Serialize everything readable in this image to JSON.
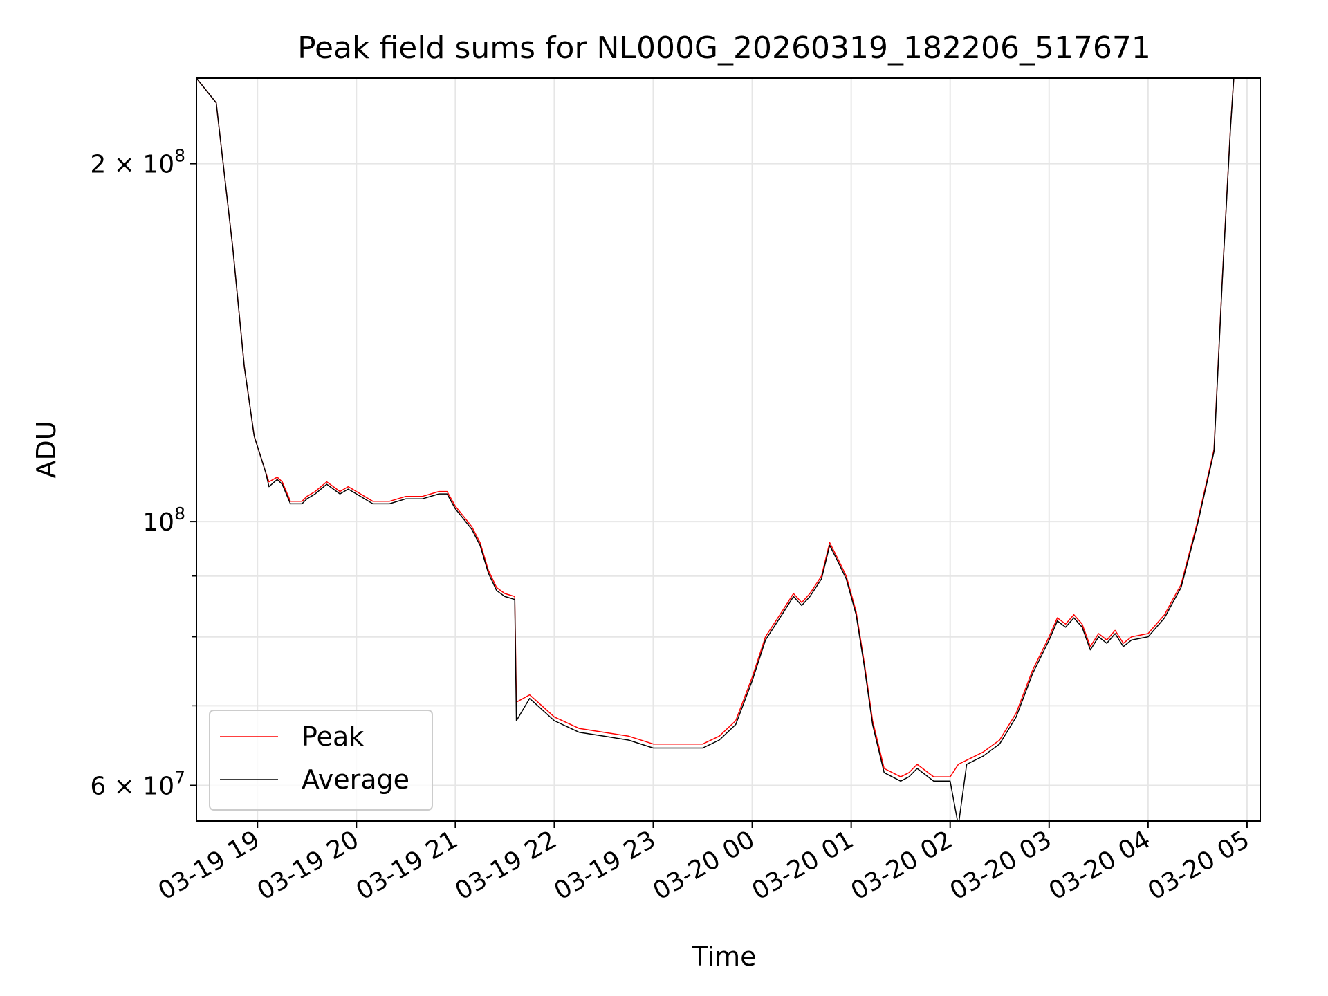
{
  "chart_data": {
    "type": "line",
    "title": "Peak field sums for NL000G_20260319_182206_517671",
    "xlabel": "Time",
    "ylabel": "ADU",
    "x_scale": "time",
    "y_scale": "log",
    "xlim": [
      "2026-03-19 18:23",
      "2026-03-20 05:08"
    ],
    "ylim": [
      56000000,
      236000000
    ],
    "x_ticks": [
      {
        "value": "2026-03-19 19:00",
        "label": "03-19 19"
      },
      {
        "value": "2026-03-19 20:00",
        "label": "03-19 20"
      },
      {
        "value": "2026-03-19 21:00",
        "label": "03-19 21"
      },
      {
        "value": "2026-03-19 22:00",
        "label": "03-19 22"
      },
      {
        "value": "2026-03-19 23:00",
        "label": "03-19 23"
      },
      {
        "value": "2026-03-20 00:00",
        "label": "03-20 00"
      },
      {
        "value": "2026-03-20 01:00",
        "label": "03-20 01"
      },
      {
        "value": "2026-03-20 02:00",
        "label": "03-20 02"
      },
      {
        "value": "2026-03-20 03:00",
        "label": "03-20 03"
      },
      {
        "value": "2026-03-20 04:00",
        "label": "03-20 04"
      },
      {
        "value": "2026-03-20 05:00",
        "label": "03-20 05"
      }
    ],
    "y_ticks_major": [
      {
        "value": 200000000,
        "label": "2 × 10^8",
        "base": "2 × 10",
        "exp": "8"
      },
      {
        "value": 100000000,
        "label": "10^8",
        "base": "10",
        "exp": "8"
      },
      {
        "value": 60000000,
        "label": "6 × 10^7",
        "base": "6 × 10",
        "exp": "7"
      }
    ],
    "y_ticks_minor": [
      70000000,
      80000000,
      90000000
    ],
    "grid": true,
    "legend_position": "lower-left",
    "series": [
      {
        "name": "Peak",
        "color": "#ff0000",
        "x": [
          "2026-03-19 18:23",
          "2026-03-19 18:35",
          "2026-03-19 18:45",
          "2026-03-19 18:52",
          "2026-03-19 18:58",
          "2026-03-19 19:05",
          "2026-03-19 19:07",
          "2026-03-19 19:12",
          "2026-03-19 19:15",
          "2026-03-19 19:20",
          "2026-03-19 19:27",
          "2026-03-19 19:30",
          "2026-03-19 19:35",
          "2026-03-19 19:42",
          "2026-03-19 19:50",
          "2026-03-19 19:55",
          "2026-03-19 20:00",
          "2026-03-19 20:10",
          "2026-03-19 20:20",
          "2026-03-19 20:30",
          "2026-03-19 20:40",
          "2026-03-19 20:50",
          "2026-03-19 20:55",
          "2026-03-19 21:00",
          "2026-03-19 21:05",
          "2026-03-19 21:10",
          "2026-03-19 21:15",
          "2026-03-19 21:20",
          "2026-03-19 21:25",
          "2026-03-19 21:30",
          "2026-03-19 21:36",
          "2026-03-19 21:37",
          "2026-03-19 21:45",
          "2026-03-19 21:50",
          "2026-03-19 22:00",
          "2026-03-19 22:15",
          "2026-03-19 22:30",
          "2026-03-19 22:45",
          "2026-03-19 23:00",
          "2026-03-19 23:15",
          "2026-03-19 23:30",
          "2026-03-19 23:40",
          "2026-03-19 23:50",
          "2026-03-20 00:00",
          "2026-03-20 00:08",
          "2026-03-20 00:18",
          "2026-03-20 00:25",
          "2026-03-20 00:30",
          "2026-03-20 00:35",
          "2026-03-20 00:42",
          "2026-03-20 00:47",
          "2026-03-20 00:52",
          "2026-03-20 00:57",
          "2026-03-20 01:03",
          "2026-03-20 01:08",
          "2026-03-20 01:13",
          "2026-03-20 01:20",
          "2026-03-20 01:30",
          "2026-03-20 01:35",
          "2026-03-20 01:40",
          "2026-03-20 01:50",
          "2026-03-20 02:00",
          "2026-03-20 02:05",
          "2026-03-20 02:10",
          "2026-03-20 02:20",
          "2026-03-20 02:30",
          "2026-03-20 02:40",
          "2026-03-20 02:50",
          "2026-03-20 03:00",
          "2026-03-20 03:05",
          "2026-03-20 03:10",
          "2026-03-20 03:15",
          "2026-03-20 03:20",
          "2026-03-20 03:25",
          "2026-03-20 03:30",
          "2026-03-20 03:35",
          "2026-03-20 03:40",
          "2026-03-20 03:45",
          "2026-03-20 03:50",
          "2026-03-20 04:00",
          "2026-03-20 04:10",
          "2026-03-20 04:15",
          "2026-03-20 04:20",
          "2026-03-20 04:30",
          "2026-03-20 04:40",
          "2026-03-20 04:45",
          "2026-03-20 04:50",
          "2026-03-20 04:52"
        ],
        "values": [
          236000000,
          225000000,
          170000000,
          135000000,
          118000000,
          110000000,
          108000000,
          109000000,
          108000000,
          104000000,
          104000000,
          105000000,
          106000000,
          108000000,
          106000000,
          107000000,
          106000000,
          104000000,
          104000000,
          105000000,
          105000000,
          106000000,
          106000000,
          103000000,
          101000000,
          99000000,
          96000000,
          91000000,
          88000000,
          87000000,
          86500000,
          70500000,
          71500000,
          70500000,
          68500000,
          67000000,
          66500000,
          66000000,
          65000000,
          65000000,
          65000000,
          66000000,
          68000000,
          74000000,
          80000000,
          84000000,
          87000000,
          85500000,
          87000000,
          90000000,
          96000000,
          93000000,
          90000000,
          84000000,
          76000000,
          68000000,
          62000000,
          61000000,
          61500000,
          62500000,
          61000000,
          61000000,
          62500000,
          63000000,
          64000000,
          65500000,
          69000000,
          75000000,
          80000000,
          83000000,
          82000000,
          83500000,
          82000000,
          78500000,
          80500000,
          79500000,
          81000000,
          79000000,
          80000000,
          80500000,
          83500000,
          86000000,
          88500000,
          100000000,
          115000000,
          160000000,
          215000000,
          236000000
        ]
      },
      {
        "name": "Average",
        "color": "#000000",
        "x": [
          "2026-03-19 18:23",
          "2026-03-19 18:35",
          "2026-03-19 18:45",
          "2026-03-19 18:52",
          "2026-03-19 18:58",
          "2026-03-19 19:05",
          "2026-03-19 19:07",
          "2026-03-19 19:12",
          "2026-03-19 19:15",
          "2026-03-19 19:20",
          "2026-03-19 19:27",
          "2026-03-19 19:30",
          "2026-03-19 19:35",
          "2026-03-19 19:42",
          "2026-03-19 19:50",
          "2026-03-19 19:55",
          "2026-03-19 20:00",
          "2026-03-19 20:10",
          "2026-03-19 20:20",
          "2026-03-19 20:30",
          "2026-03-19 20:40",
          "2026-03-19 20:50",
          "2026-03-19 20:55",
          "2026-03-19 21:00",
          "2026-03-19 21:05",
          "2026-03-19 21:10",
          "2026-03-19 21:15",
          "2026-03-19 21:20",
          "2026-03-19 21:25",
          "2026-03-19 21:30",
          "2026-03-19 21:36",
          "2026-03-19 21:37",
          "2026-03-19 21:45",
          "2026-03-19 21:50",
          "2026-03-19 22:00",
          "2026-03-19 22:15",
          "2026-03-19 22:30",
          "2026-03-19 22:45",
          "2026-03-19 23:00",
          "2026-03-19 23:15",
          "2026-03-19 23:30",
          "2026-03-19 23:40",
          "2026-03-19 23:50",
          "2026-03-20 00:00",
          "2026-03-20 00:08",
          "2026-03-20 00:18",
          "2026-03-20 00:25",
          "2026-03-20 00:30",
          "2026-03-20 00:35",
          "2026-03-20 00:42",
          "2026-03-20 00:47",
          "2026-03-20 00:52",
          "2026-03-20 00:57",
          "2026-03-20 01:03",
          "2026-03-20 01:08",
          "2026-03-20 01:13",
          "2026-03-20 01:20",
          "2026-03-20 01:30",
          "2026-03-20 01:35",
          "2026-03-20 01:40",
          "2026-03-20 01:50",
          "2026-03-20 02:00",
          "2026-03-20 02:05",
          "2026-03-20 02:10",
          "2026-03-20 02:20",
          "2026-03-20 02:30",
          "2026-03-20 02:40",
          "2026-03-20 02:50",
          "2026-03-20 03:00",
          "2026-03-20 03:05",
          "2026-03-20 03:10",
          "2026-03-20 03:15",
          "2026-03-20 03:20",
          "2026-03-20 03:25",
          "2026-03-20 03:30",
          "2026-03-20 03:35",
          "2026-03-20 03:40",
          "2026-03-20 03:45",
          "2026-03-20 03:50",
          "2026-03-20 04:00",
          "2026-03-20 04:10",
          "2026-03-20 04:15",
          "2026-03-20 04:20",
          "2026-03-20 04:30",
          "2026-03-20 04:40",
          "2026-03-20 04:45",
          "2026-03-20 04:50",
          "2026-03-20 04:52"
        ],
        "values": [
          236000000,
          225000000,
          170000000,
          135000000,
          118000000,
          110000000,
          107000000,
          108500000,
          107500000,
          103500000,
          103500000,
          104500000,
          105500000,
          107500000,
          105500000,
          106500000,
          105500000,
          103500000,
          103500000,
          104500000,
          104500000,
          105500000,
          105500000,
          102500000,
          100500000,
          98500000,
          95500000,
          90500000,
          87500000,
          86500000,
          86000000,
          68000000,
          71000000,
          70000000,
          68000000,
          66500000,
          66000000,
          65500000,
          64500000,
          64500000,
          64500000,
          65500000,
          67500000,
          73500000,
          79500000,
          83500000,
          86500000,
          85000000,
          86500000,
          89500000,
          95500000,
          92500000,
          89500000,
          83500000,
          75500000,
          67500000,
          61500000,
          60500000,
          61000000,
          62000000,
          60500000,
          60500000,
          55500000,
          62500000,
          63500000,
          65000000,
          68500000,
          74500000,
          79500000,
          82500000,
          81500000,
          83000000,
          81500000,
          78000000,
          80000000,
          79000000,
          80500000,
          78500000,
          79500000,
          80000000,
          83000000,
          85500000,
          88000000,
          99500000,
          114500000,
          159500000,
          214500000,
          236000000
        ]
      }
    ]
  }
}
